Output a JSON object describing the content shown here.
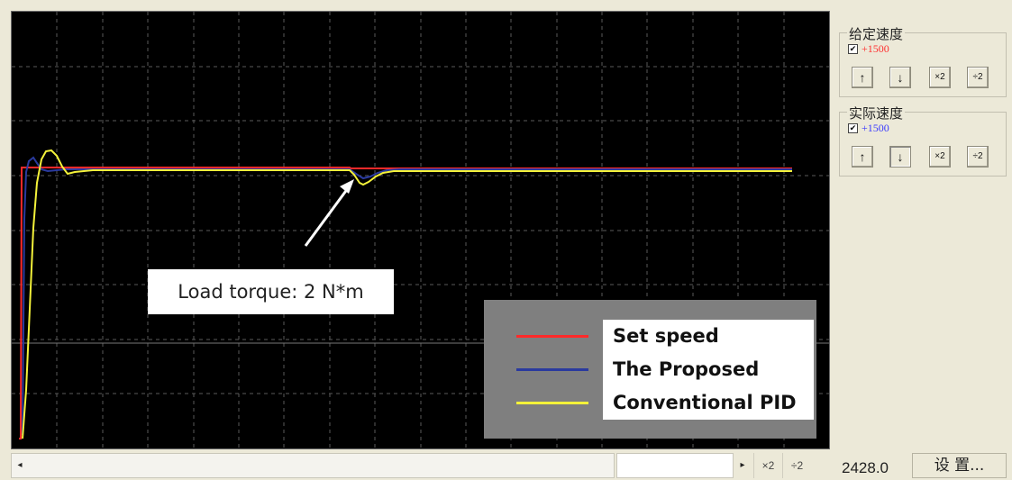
{
  "scope": {
    "callout_text": "Load torque: 2 N*m",
    "legend": [
      {
        "label": "Set speed",
        "color": "#ff2a2a"
      },
      {
        "label": "The Proposed",
        "color": "#2a3a9e"
      },
      {
        "label": "Conventional PID",
        "color": "#f4f23a"
      }
    ]
  },
  "panel": {
    "given_speed": {
      "title": "给定速度",
      "checked": "✔",
      "value": "+1500",
      "value_color": "#ff3030",
      "buttons": [
        "↑",
        "↓",
        "×2",
        "÷2"
      ]
    },
    "actual_speed": {
      "title": "实际速度",
      "checked": "✔",
      "value": "+1500",
      "value_color": "#3a3aff",
      "buttons": [
        "↑",
        "↓",
        "×2",
        "÷2"
      ]
    }
  },
  "bottom": {
    "scroll_left": "◂",
    "scroll_right": "▸",
    "btn_x2": "×2",
    "btn_div2": "÷2",
    "readout": "2428.0",
    "settings_label": "设 置..."
  }
}
